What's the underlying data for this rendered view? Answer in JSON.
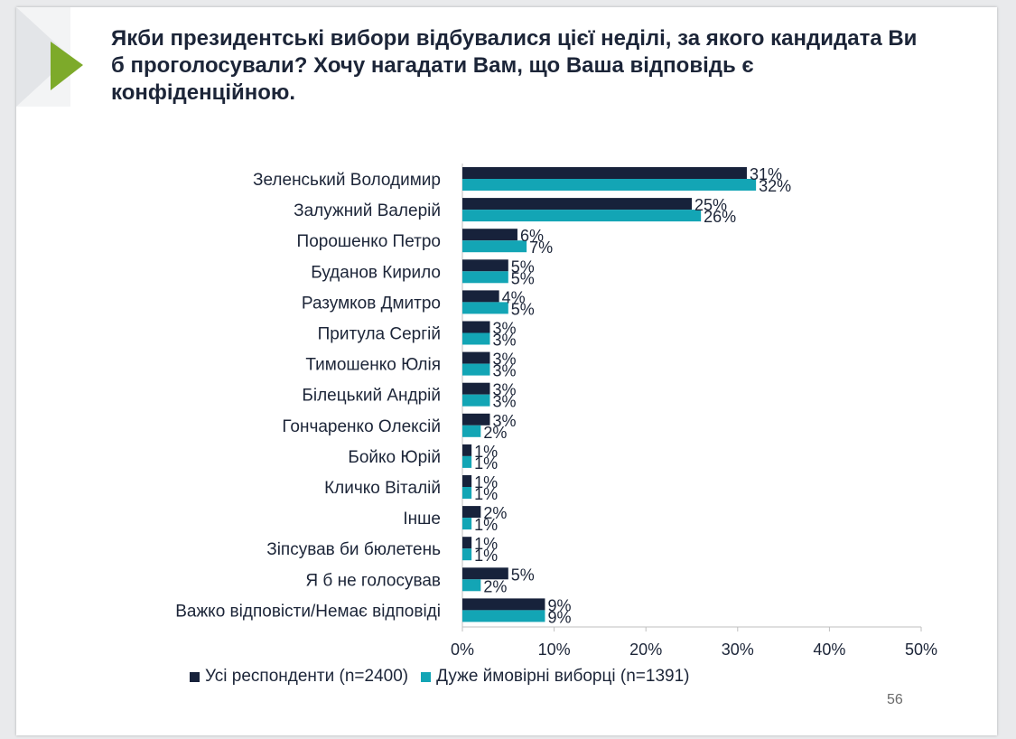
{
  "header": {
    "title": "Якби президентські вибори відбувалися цієї неділі, за якого кандидата Ви б проголосували? Хочу нагадати Вам, що Ваша відповідь є конфіденційною."
  },
  "colors": {
    "series1": "#17223b",
    "series2": "#13a5b5",
    "accent_arrow": "#7daa2a"
  },
  "footer": {
    "page_number": "56"
  },
  "chart_data": {
    "type": "bar",
    "orientation": "horizontal",
    "categories": [
      "Зеленський Володимир",
      "Залужний Валерій",
      "Порошенко Петро",
      "Буданов Кирило",
      "Разумков Дмитро",
      "Притула Сергій",
      "Тимошенко Юлія",
      "Білецький Андрій",
      "Гончаренко Олексій",
      "Бойко Юрій",
      "Кличко Віталій",
      "Інше",
      "Зіпсував би бюлетень",
      "Я б не голосував",
      "Важко відповісти/Немає відповіді"
    ],
    "series": [
      {
        "name": "Усі респонденти (n=2400)",
        "values": [
          31,
          25,
          6,
          5,
          4,
          3,
          3,
          3,
          3,
          1,
          1,
          2,
          1,
          5,
          9
        ],
        "labels": [
          "31%",
          "25%",
          "6%",
          "5%",
          "4%",
          "3%",
          "3%",
          "3%",
          "3%",
          "1%",
          "1%",
          "2%",
          "1%",
          "5%",
          "9%"
        ]
      },
      {
        "name": "Дуже ймовірні виборці (n=1391)",
        "values": [
          32,
          26,
          7,
          5,
          5,
          3,
          3,
          3,
          2,
          1,
          1,
          1,
          1,
          2,
          9
        ],
        "labels": [
          "32%",
          "26%",
          "7%",
          "5%",
          "5%",
          "3%",
          "3%",
          "3%",
          "2%",
          "1%",
          "1%",
          "1%",
          "1%",
          "2%",
          "9%"
        ]
      }
    ],
    "xlim": [
      0,
      50
    ],
    "ticks": [
      "0%",
      "10%",
      "20%",
      "30%",
      "40%",
      "50%"
    ],
    "tick_values": [
      0,
      10,
      20,
      30,
      40,
      50
    ],
    "legend_position": "bottom",
    "grid": false
  }
}
